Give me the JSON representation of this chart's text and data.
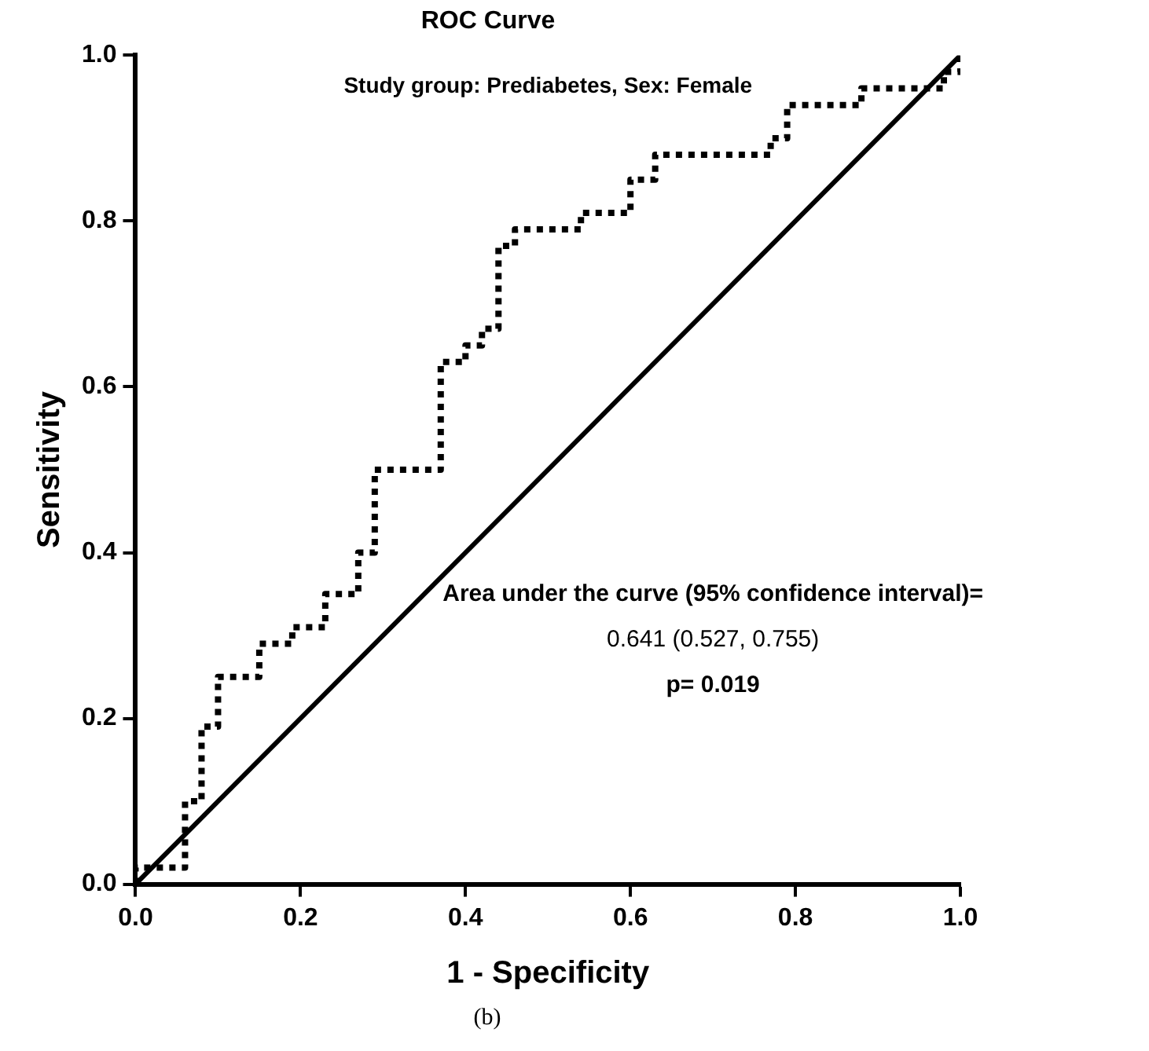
{
  "chart_data": {
    "type": "line",
    "title": "ROC Curve",
    "subtitle": "Study group: Prediabetes, Sex: Female",
    "xlabel": "1 - Specificity",
    "ylabel": "Sensitivity",
    "xlim": [
      0,
      1
    ],
    "ylim": [
      0,
      1
    ],
    "xticks": [
      {
        "value": 0,
        "label": "0.0"
      },
      0.2,
      0.4,
      0.6,
      0.8,
      {
        "value": 1,
        "label": "1.0"
      }
    ],
    "yticks": [
      {
        "value": 0,
        "label": "0.0"
      },
      0.2,
      0.4,
      0.6,
      0.8,
      {
        "value": 1,
        "label": "1.0"
      }
    ],
    "grid": false,
    "marker": "none",
    "series": [
      {
        "color": "#000000",
        "line_style": "dotted",
        "x": [
          0,
          0,
          0.06,
          0.06,
          0.08,
          0.08,
          0.1,
          0.1,
          0.15,
          0.15,
          0.19,
          0.19,
          0.23,
          0.23,
          0.27,
          0.27,
          0.29,
          0.29,
          0.37,
          0.37,
          0.4,
          0.4,
          0.42,
          0.42,
          0.44,
          0.44,
          0.46,
          0.46,
          0.54,
          0.54,
          0.6,
          0.6,
          0.63,
          0.63,
          0.77,
          0.77,
          0.79,
          0.79,
          0.88,
          0.88,
          0.96,
          0.96,
          0.98,
          0.98,
          1,
          1
        ],
        "values": [
          0,
          0.02,
          0.02,
          0.1,
          0.1,
          0.19,
          0.19,
          0.25,
          0.25,
          0.29,
          0.29,
          0.31,
          0.31,
          0.35,
          0.35,
          0.4,
          0.4,
          0.5,
          0.5,
          0.63,
          0.63,
          0.65,
          0.65,
          0.67,
          0.67,
          0.77,
          0.77,
          0.79,
          0.79,
          0.81,
          0.81,
          0.85,
          0.85,
          0.88,
          0.88,
          0.9,
          0.9,
          0.94,
          0.94,
          0.96,
          0.96,
          0.96,
          0.96,
          0.98,
          0.98,
          1
        ]
      },
      {
        "color": "#000000",
        "line_style": "solid",
        "x": [
          0,
          1
        ],
        "values": [
          0,
          1
        ]
      }
    ],
    "annotations": [
      "Area under the curve (95% confidence interval)=",
      "0.641 (0.527, 0.755)",
      "p= 0.019",
      "(b)"
    ]
  }
}
